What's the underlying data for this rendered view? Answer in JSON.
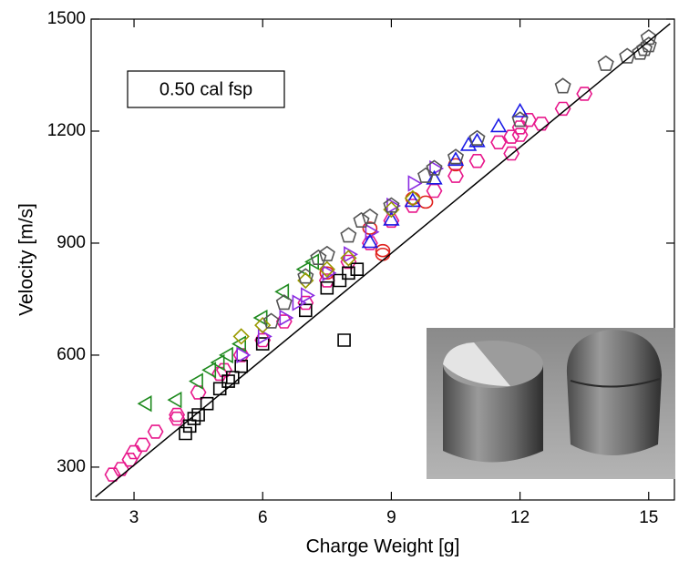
{
  "chart_data": {
    "type": "scatter",
    "annotation": "0.50 cal fsp",
    "x_label": "Charge Weight  [g]",
    "y_label": "Velocity  [m/s]",
    "xlim": [
      2,
      15.6
    ],
    "ylim": [
      212,
      1500
    ],
    "xticks": [
      3,
      6,
      9,
      12,
      15
    ],
    "yticks": [
      300,
      600,
      900,
      1200,
      1500
    ],
    "series": [
      {
        "color": "#e8188c",
        "marker": "hexagon",
        "x": [
          2.5,
          2.7,
          2.9,
          3.0,
          3.2,
          3.5,
          4.0,
          4.0,
          4.5,
          5.0,
          5.1,
          5.5,
          6.0,
          6.5,
          7.0,
          7.5,
          8.0,
          8.5,
          9.0,
          9.5,
          10.0,
          10.5,
          11.0,
          11.5,
          11.8,
          12.0,
          12.0,
          12.5,
          13.0,
          13.5,
          11.8,
          12.2
        ],
        "y": [
          280,
          295,
          320,
          340,
          360,
          395,
          430,
          440,
          500,
          550,
          560,
          600,
          640,
          690,
          740,
          800,
          850,
          900,
          960,
          1000,
          1040,
          1080,
          1120,
          1170,
          1185,
          1190,
          1210,
          1220,
          1260,
          1300,
          1140,
          1230
        ]
      },
      {
        "color": "#e0201c",
        "marker": "circle",
        "x": [
          8.8,
          8.8,
          7.5,
          8.5,
          9.5,
          10.5,
          9.8
        ],
        "y": [
          870,
          880,
          820,
          940,
          1020,
          1110,
          1010
        ]
      },
      {
        "color": "#000000",
        "marker": "square",
        "x": [
          4.2,
          4.3,
          4.5,
          4.7,
          5.0,
          5.3,
          5.5,
          6.0,
          7.0,
          7.5,
          7.8,
          8.0,
          8.2,
          7.9,
          4.4,
          5.2
        ],
        "y": [
          390,
          410,
          440,
          470,
          510,
          540,
          570,
          630,
          720,
          780,
          800,
          820,
          830,
          640,
          430,
          530
        ]
      },
      {
        "color": "#1e8a1e",
        "marker": "triangle-left",
        "x": [
          3.3,
          4.0,
          4.5,
          5.0,
          5.5,
          6.0,
          6.5,
          7.0,
          7.2,
          4.8,
          5.2
        ],
        "y": [
          470,
          480,
          530,
          580,
          630,
          700,
          770,
          830,
          850,
          560,
          600
        ]
      },
      {
        "color": "#8a2be2",
        "marker": "triangle-right",
        "x": [
          5.5,
          6.0,
          6.5,
          7.0,
          7.5,
          8.0,
          8.5,
          9.0,
          9.5,
          10.0,
          6.8
        ],
        "y": [
          600,
          650,
          700,
          760,
          820,
          870,
          930,
          1000,
          1060,
          1100,
          740
        ]
      },
      {
        "color": "#1a1ae6",
        "marker": "triangle-up",
        "x": [
          8.5,
          9.0,
          9.5,
          10.0,
          10.5,
          11.0,
          11.5,
          12.0,
          10.8
        ],
        "y": [
          900,
          960,
          1010,
          1070,
          1120,
          1170,
          1210,
          1250,
          1160
        ]
      },
      {
        "color": "#9a9a00",
        "marker": "diamond",
        "x": [
          5.5,
          6.0,
          7.0,
          7.5,
          9.0,
          9.5,
          8.0
        ],
        "y": [
          650,
          680,
          800,
          830,
          990,
          1020,
          860
        ]
      },
      {
        "color": "#555555",
        "marker": "pentagon",
        "x": [
          6.5,
          7.0,
          7.5,
          8.0,
          8.5,
          9.0,
          10.0,
          10.5,
          11.0,
          12.0,
          13.0,
          14.0,
          14.5,
          14.8,
          15.0,
          15.0,
          14.9,
          6.2,
          7.3,
          8.3,
          9.8
        ],
        "y": [
          740,
          810,
          870,
          920,
          970,
          1000,
          1100,
          1130,
          1180,
          1230,
          1320,
          1380,
          1400,
          1410,
          1430,
          1450,
          1420,
          690,
          860,
          960,
          1080
        ]
      }
    ],
    "fit_line": {
      "color": "#000000",
      "x": [
        2.1,
        15.5
      ],
      "y": [
        220,
        1488
      ]
    }
  }
}
